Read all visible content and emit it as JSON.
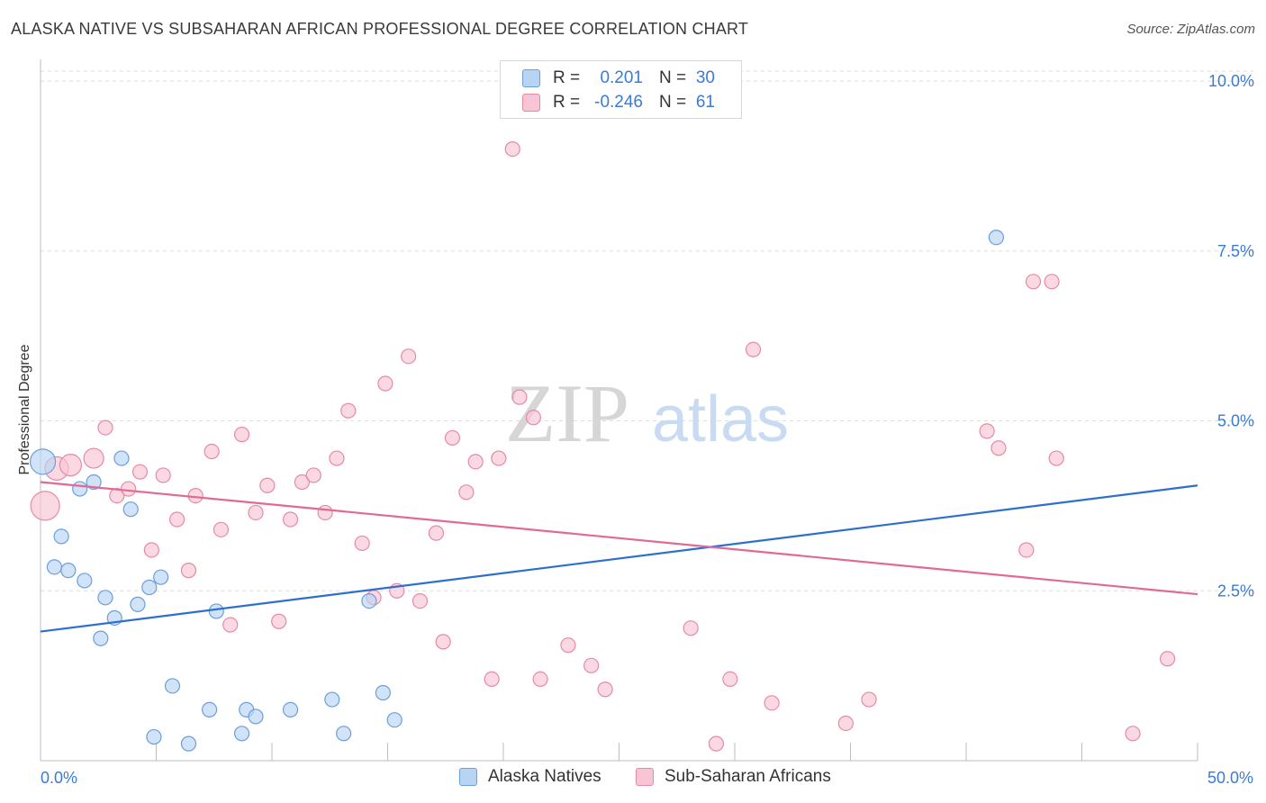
{
  "title": "ALASKA NATIVE VS SUBSAHARAN AFRICAN PROFESSIONAL DEGREE CORRELATION CHART",
  "source": "Source: ZipAtlas.com",
  "watermark": {
    "zip": "ZIP",
    "atlas": "atlas"
  },
  "colors": {
    "blue_fill": "#b8d4f5",
    "blue_stroke": "#6c9fd8",
    "blue_line": "#2e6fce",
    "pink_fill": "#f9c4d3",
    "pink_stroke": "#e58aa6",
    "pink_line": "#e06a93",
    "tick_text": "#3a7bd5",
    "grid": "#dddddd"
  },
  "legend": {
    "rows": [
      {
        "r_label": "R =",
        "r_value": "0.201",
        "n_label": "N =",
        "n_value": "30"
      },
      {
        "r_label": "R =",
        "r_value": "-0.246",
        "n_label": "N =",
        "n_value": "61"
      }
    ]
  },
  "bottom_legend": {
    "series1": "Alaska Natives",
    "series2": "Sub-Saharan Africans"
  },
  "chart_data": {
    "type": "scatter",
    "title": "ALASKA NATIVE VS SUBSAHARAN AFRICAN PROFESSIONAL DEGREE CORRELATION CHART",
    "xlabel": "",
    "ylabel": "Professional Degree",
    "xlim": [
      0,
      50
    ],
    "ylim": [
      0,
      10.2
    ],
    "x_tick_labels": [
      {
        "value": 0,
        "label": "0.0%"
      },
      {
        "value": 50,
        "label": "50.0%"
      }
    ],
    "y_tick_labels": [
      {
        "value": 2.5,
        "label": "2.5%"
      },
      {
        "value": 5.0,
        "label": "5.0%"
      },
      {
        "value": 7.5,
        "label": "7.5%"
      },
      {
        "value": 10.0,
        "label": "10.0%"
      }
    ],
    "grid": true,
    "legend_position": "top-center",
    "series": [
      {
        "name": "Alaska Natives",
        "color": "#b8d4f5",
        "points": [
          {
            "x": 0.1,
            "y": 4.4,
            "s": 14
          },
          {
            "x": 0.6,
            "y": 2.85
          },
          {
            "x": 0.9,
            "y": 3.3
          },
          {
            "x": 1.2,
            "y": 2.8
          },
          {
            "x": 1.7,
            "y": 4.0
          },
          {
            "x": 1.9,
            "y": 2.65
          },
          {
            "x": 2.3,
            "y": 4.1
          },
          {
            "x": 2.6,
            "y": 1.8
          },
          {
            "x": 2.8,
            "y": 2.4
          },
          {
            "x": 3.2,
            "y": 2.1
          },
          {
            "x": 3.5,
            "y": 4.45
          },
          {
            "x": 3.9,
            "y": 3.7
          },
          {
            "x": 4.2,
            "y": 2.3
          },
          {
            "x": 4.7,
            "y": 2.55
          },
          {
            "x": 5.2,
            "y": 2.7
          },
          {
            "x": 4.9,
            "y": 0.35
          },
          {
            "x": 5.7,
            "y": 1.1
          },
          {
            "x": 6.4,
            "y": 0.25
          },
          {
            "x": 7.3,
            "y": 0.75
          },
          {
            "x": 7.6,
            "y": 2.2
          },
          {
            "x": 8.7,
            "y": 0.4
          },
          {
            "x": 8.9,
            "y": 0.75
          },
          {
            "x": 9.3,
            "y": 0.65
          },
          {
            "x": 10.8,
            "y": 0.75
          },
          {
            "x": 12.6,
            "y": 0.9
          },
          {
            "x": 13.1,
            "y": 0.4
          },
          {
            "x": 14.2,
            "y": 2.35
          },
          {
            "x": 14.8,
            "y": 1.0
          },
          {
            "x": 15.3,
            "y": 0.6
          },
          {
            "x": 41.3,
            "y": 7.7
          }
        ]
      },
      {
        "name": "Sub-Saharan Africans",
        "color": "#f9c4d3",
        "points": [
          {
            "x": 0.2,
            "y": 3.75,
            "s": 16
          },
          {
            "x": 0.7,
            "y": 4.3,
            "s": 13
          },
          {
            "x": 1.3,
            "y": 4.35,
            "s": 12
          },
          {
            "x": 2.3,
            "y": 4.45,
            "s": 11
          },
          {
            "x": 2.8,
            "y": 4.9
          },
          {
            "x": 3.3,
            "y": 3.9
          },
          {
            "x": 3.8,
            "y": 4.0
          },
          {
            "x": 4.3,
            "y": 4.25
          },
          {
            "x": 4.8,
            "y": 3.1
          },
          {
            "x": 5.3,
            "y": 4.2
          },
          {
            "x": 5.9,
            "y": 3.55
          },
          {
            "x": 6.4,
            "y": 2.8
          },
          {
            "x": 6.7,
            "y": 3.9
          },
          {
            "x": 7.4,
            "y": 4.55
          },
          {
            "x": 7.8,
            "y": 3.4
          },
          {
            "x": 8.2,
            "y": 2.0
          },
          {
            "x": 8.7,
            "y": 4.8
          },
          {
            "x": 9.3,
            "y": 3.65
          },
          {
            "x": 9.8,
            "y": 4.05
          },
          {
            "x": 10.3,
            "y": 2.05
          },
          {
            "x": 10.8,
            "y": 3.55
          },
          {
            "x": 11.3,
            "y": 4.1
          },
          {
            "x": 11.8,
            "y": 4.2
          },
          {
            "x": 12.3,
            "y": 3.65
          },
          {
            "x": 12.8,
            "y": 4.45
          },
          {
            "x": 13.3,
            "y": 5.15
          },
          {
            "x": 13.9,
            "y": 3.2
          },
          {
            "x": 14.4,
            "y": 2.4
          },
          {
            "x": 14.9,
            "y": 5.55
          },
          {
            "x": 15.4,
            "y": 2.5
          },
          {
            "x": 15.9,
            "y": 5.95
          },
          {
            "x": 16.4,
            "y": 2.35
          },
          {
            "x": 17.1,
            "y": 3.35
          },
          {
            "x": 17.4,
            "y": 1.75
          },
          {
            "x": 17.8,
            "y": 4.75
          },
          {
            "x": 18.4,
            "y": 3.95
          },
          {
            "x": 18.8,
            "y": 4.4
          },
          {
            "x": 19.5,
            "y": 1.2
          },
          {
            "x": 19.8,
            "y": 4.45
          },
          {
            "x": 20.4,
            "y": 9.0
          },
          {
            "x": 20.7,
            "y": 5.35
          },
          {
            "x": 21.3,
            "y": 5.05
          },
          {
            "x": 21.6,
            "y": 1.2
          },
          {
            "x": 22.8,
            "y": 1.7
          },
          {
            "x": 23.8,
            "y": 1.4
          },
          {
            "x": 24.4,
            "y": 1.05
          },
          {
            "x": 28.1,
            "y": 1.95
          },
          {
            "x": 29.2,
            "y": 0.25
          },
          {
            "x": 29.8,
            "y": 1.2
          },
          {
            "x": 30.8,
            "y": 6.05
          },
          {
            "x": 31.6,
            "y": 0.85
          },
          {
            "x": 34.8,
            "y": 0.55
          },
          {
            "x": 35.8,
            "y": 0.9
          },
          {
            "x": 40.9,
            "y": 4.85
          },
          {
            "x": 41.4,
            "y": 4.6
          },
          {
            "x": 42.6,
            "y": 3.1
          },
          {
            "x": 42.9,
            "y": 7.05
          },
          {
            "x": 43.7,
            "y": 7.05
          },
          {
            "x": 43.9,
            "y": 4.45
          },
          {
            "x": 47.2,
            "y": 0.4
          },
          {
            "x": 48.7,
            "y": 1.5
          }
        ]
      }
    ],
    "trend_lines": [
      {
        "series": "Alaska Natives",
        "x": [
          0,
          50
        ],
        "y": [
          1.9,
          4.05
        ]
      },
      {
        "series": "Sub-Saharan Africans",
        "x": [
          0,
          50
        ],
        "y": [
          4.1,
          2.45
        ]
      }
    ]
  }
}
